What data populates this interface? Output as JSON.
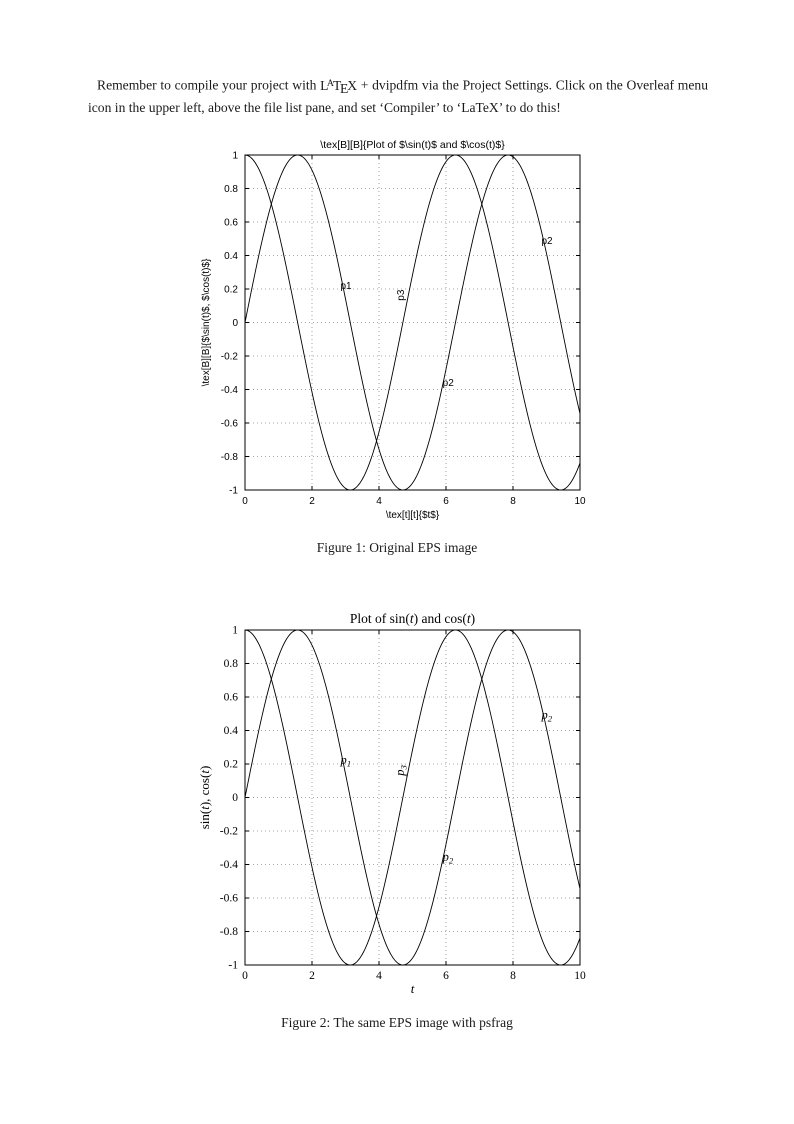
{
  "page": {
    "background": "#ffffff",
    "text_color": "#1a1a1a"
  },
  "intro": {
    "part_before_logo": "Remember to compile your project with ",
    "latex_logo": "LaTeX",
    "part_after_logo": " + dvipdfm via the Project Settings. Click on the Overleaf menu icon in the upper left, above the file list pane, and set ‘Compiler’ to ‘LaTeX’ to do this!"
  },
  "figures": [
    {
      "caption": "Figure 1: Original EPS image"
    },
    {
      "caption": "Figure 2: The same EPS image with psfrag"
    }
  ],
  "chart_data": [
    {
      "id": "chart1",
      "type": "line",
      "font_class": "chart-sans",
      "title": "\\tex[B][B]{Plot of $\\sin(t)$ and $\\cos(t)$}",
      "title_parts": [
        {
          "text": "\\tex[B][B]{Plot of $\\sin(t)$ and $\\cos(t)$}"
        }
      ],
      "xlabel_parts": [
        {
          "text": "\\tex[t][t]{$t$}"
        }
      ],
      "ylabel_parts": [
        {
          "text": "\\tex[B][B]{$\\sin(t)$, $\\cos(t)$}"
        }
      ],
      "xlim": [
        0,
        10
      ],
      "ylim": [
        -1,
        1
      ],
      "xticks": [
        0,
        2,
        4,
        6,
        8,
        10
      ],
      "xtick_labels": [
        "0",
        "2",
        "4",
        "6",
        "8",
        "10"
      ],
      "yticks": [
        -1,
        -0.8,
        -0.6,
        -0.4,
        -0.2,
        0,
        0.2,
        0.4,
        0.6,
        0.8,
        1
      ],
      "ytick_labels": [
        "-1",
        "-0.8",
        "-0.6",
        "-0.4",
        "-0.2",
        "0",
        "0.2",
        "0.4",
        "0.6",
        "0.8",
        "1"
      ],
      "grid": true,
      "legend": null,
      "series": [
        {
          "name": "sin(t)",
          "fn": "sin",
          "x_start": 0,
          "x_end": 10,
          "samples": 240
        },
        {
          "name": "cos(t)",
          "fn": "cos",
          "x_start": 0,
          "x_end": 10,
          "samples": 240
        }
      ],
      "annotations": [
        {
          "text": "p1",
          "x": 2.85,
          "y": 0.2,
          "rotate": 0
        },
        {
          "text": "p3",
          "x": 4.75,
          "y": 0.13,
          "rotate": -90
        },
        {
          "text": "p2",
          "x": 5.9,
          "y": -0.38,
          "rotate": 0
        },
        {
          "text": "p2",
          "x": 8.85,
          "y": 0.47,
          "rotate": 0
        }
      ]
    },
    {
      "id": "chart2",
      "type": "line",
      "font_class": "chart-serif",
      "title": "Plot of sin(t) and cos(t)",
      "title_parts": [
        {
          "text": "Plot of sin("
        },
        {
          "text": "t",
          "italic": true
        },
        {
          "text": ") and cos("
        },
        {
          "text": "t",
          "italic": true
        },
        {
          "text": ")"
        }
      ],
      "xlabel_parts": [
        {
          "text": "t",
          "italic": true
        }
      ],
      "ylabel_parts": [
        {
          "text": "sin("
        },
        {
          "text": "t",
          "italic": true
        },
        {
          "text": "), cos("
        },
        {
          "text": "t",
          "italic": true
        },
        {
          "text": ")"
        }
      ],
      "xlim": [
        0,
        10
      ],
      "ylim": [
        -1,
        1
      ],
      "xticks": [
        0,
        2,
        4,
        6,
        8,
        10
      ],
      "xtick_labels": [
        "0",
        "2",
        "4",
        "6",
        "8",
        "10"
      ],
      "yticks": [
        -1,
        -0.8,
        -0.6,
        -0.4,
        -0.2,
        0,
        0.2,
        0.4,
        0.6,
        0.8,
        1
      ],
      "ytick_labels": [
        "-1",
        "-0.8",
        "-0.6",
        "-0.4",
        "-0.2",
        "0",
        "0.2",
        "0.4",
        "0.6",
        "0.8",
        "1"
      ],
      "grid": true,
      "legend": null,
      "series": [
        {
          "name": "sin(t)",
          "fn": "sin",
          "x_start": 0,
          "x_end": 10,
          "samples": 240
        },
        {
          "name": "cos(t)",
          "fn": "cos",
          "x_start": 0,
          "x_end": 10,
          "samples": 240
        }
      ],
      "annotations": [
        {
          "text": "p",
          "sub": "1",
          "italic": true,
          "x": 2.85,
          "y": 0.2,
          "rotate": 0
        },
        {
          "text": "p",
          "sub": "3",
          "italic": true,
          "x": 4.75,
          "y": 0.13,
          "rotate": -90
        },
        {
          "text": "p",
          "sub": "2",
          "italic": true,
          "x": 5.9,
          "y": -0.38,
          "rotate": 0
        },
        {
          "text": "p",
          "sub": "2",
          "italic": true,
          "x": 8.85,
          "y": 0.47,
          "rotate": 0
        }
      ]
    }
  ]
}
